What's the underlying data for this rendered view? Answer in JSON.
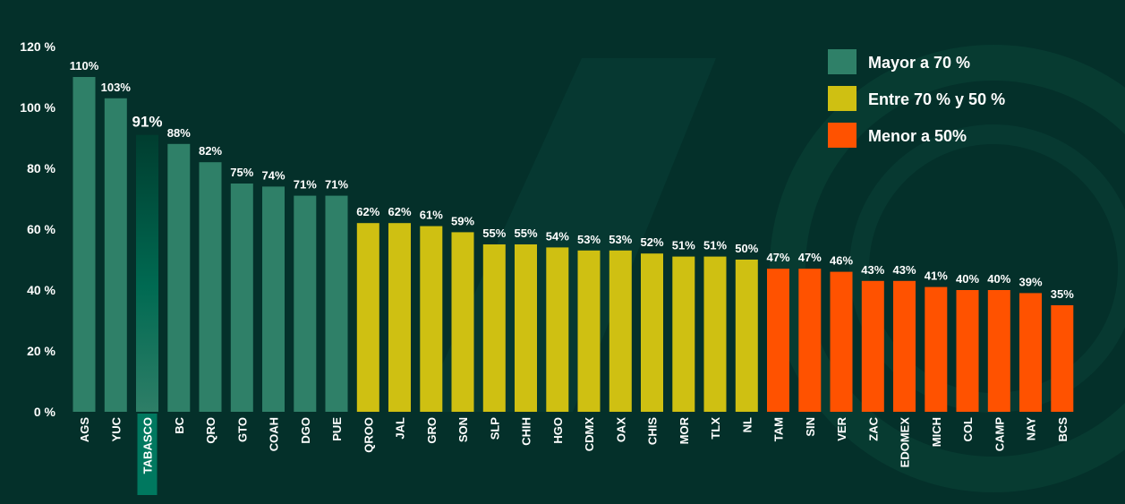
{
  "chart_data": {
    "type": "bar",
    "title": "",
    "xlabel": "",
    "ylabel": "",
    "ylim": [
      0,
      120
    ],
    "yticks": [
      0,
      20,
      40,
      60,
      80,
      100,
      120
    ],
    "ytick_labels": [
      "0 %",
      "20 %",
      "40 %",
      "60 %",
      "80 %",
      "100 %",
      "120 %"
    ],
    "categories": [
      "AGS",
      "YUC",
      "TABASCO",
      "BC",
      "QRO",
      "GTO",
      "COAH",
      "DGO",
      "PUE",
      "QROO",
      "JAL",
      "GRO",
      "SON",
      "SLP",
      "CHIH",
      "HGO",
      "CDMX",
      "OAX",
      "CHIS",
      "MOR",
      "TLX",
      "NL",
      "TAM",
      "SIN",
      "VER",
      "ZAC",
      "EDOMEX",
      "MICH",
      "COL",
      "CAMP",
      "NAY",
      "BCS"
    ],
    "values": [
      110,
      103,
      91,
      88,
      82,
      75,
      74,
      71,
      71,
      62,
      62,
      61,
      59,
      55,
      55,
      54,
      53,
      53,
      52,
      51,
      51,
      50,
      47,
      47,
      46,
      43,
      43,
      41,
      40,
      40,
      39,
      35
    ],
    "value_labels": [
      "110%",
      "103%",
      "91%",
      "88%",
      "82%",
      "75%",
      "74%",
      "71%",
      "71%",
      "62%",
      "62%",
      "61%",
      "59%",
      "55%",
      "55%",
      "54%",
      "53%",
      "53%",
      "52%",
      "51%",
      "51%",
      "50%",
      "47%",
      "47%",
      "46%",
      "43%",
      "43%",
      "41%",
      "40%",
      "40%",
      "39%",
      "35%"
    ],
    "groups": [
      "high",
      "high",
      "high",
      "high",
      "high",
      "high",
      "high",
      "high",
      "high",
      "mid",
      "mid",
      "mid",
      "mid",
      "mid",
      "mid",
      "mid",
      "mid",
      "mid",
      "mid",
      "mid",
      "mid",
      "mid",
      "low",
      "low",
      "low",
      "low",
      "low",
      "low",
      "low",
      "low",
      "low",
      "low"
    ],
    "highlight": "TABASCO",
    "legend_position": "top-right",
    "legend": [
      {
        "key": "high",
        "label": "Mayor a 70 %",
        "color": "#2f8068"
      },
      {
        "key": "mid",
        "label": "Entre 70 % y 50 %",
        "color": "#cfc012"
      },
      {
        "key": "low",
        "label": "Menor a 50%",
        "color": "#ff5200"
      }
    ],
    "colors": {
      "high": "#2f8068",
      "mid": "#cfc012",
      "low": "#ff5200",
      "highlight_top": "#003d2f",
      "highlight_bottom": "#2e7e67",
      "highlight_label_bg": "#00785f"
    }
  }
}
